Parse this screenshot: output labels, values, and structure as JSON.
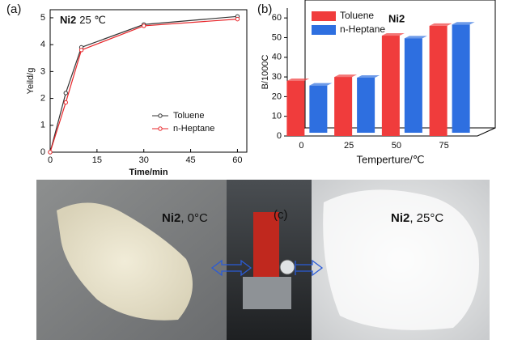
{
  "chart_data": [
    {
      "type": "line",
      "panel": "(a)",
      "title": "Ni2",
      "subtitle": "25 ℃",
      "x_label": "Time/min",
      "y_label": "Yeild/g",
      "x": [
        0,
        5,
        10,
        30,
        60
      ],
      "series": [
        {
          "name": "Toluene",
          "color": "#333333",
          "values": [
            0,
            2.2,
            3.9,
            4.75,
            5.05
          ]
        },
        {
          "name": "n-Heptane",
          "color": "#e8262a",
          "values": [
            0,
            1.85,
            3.8,
            4.7,
            4.95
          ]
        }
      ],
      "xlim": [
        0,
        63
      ],
      "xticks": [
        0,
        15,
        30,
        45,
        60
      ],
      "ylim": [
        0,
        5.3
      ],
      "yticks": [
        0,
        1,
        2,
        3,
        4,
        5
      ],
      "legend": "lower right"
    },
    {
      "type": "bar3d",
      "panel": "(b)",
      "title": "Ni2",
      "x_label": "Temperture/℃",
      "y_label": "B/1000C",
      "categories": [
        "0",
        "25",
        "50",
        "75"
      ],
      "series": [
        {
          "name": "Toluene",
          "color": "#f03c3c",
          "values": [
            28,
            30,
            51,
            56
          ]
        },
        {
          "name": "n-Heptane",
          "color": "#2e6fe0",
          "values": [
            24,
            28,
            48,
            55
          ]
        }
      ],
      "ylim": [
        0,
        65
      ],
      "yticks": [
        0,
        10,
        20,
        30,
        40,
        50,
        60
      ],
      "legend": "upper left"
    }
  ],
  "photos": [
    {
      "bold": "Ni2",
      "label": ", 0°C"
    },
    {
      "label": "(c)"
    },
    {
      "bold": "Ni2",
      "label": ", 25°C"
    }
  ]
}
